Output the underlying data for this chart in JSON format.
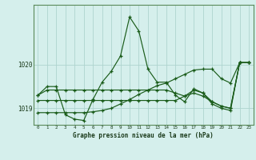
{
  "xlabel": "Graphe pression niveau de la mer (hPa)",
  "bg_color": "#d5efec",
  "grid_color": "#aed4cf",
  "line_color": "#1a5c1a",
  "xmin": -0.5,
  "xmax": 23.5,
  "ymin": 1018.62,
  "ymax": 1021.38,
  "yticks": [
    1019,
    1020
  ],
  "xticks": [
    0,
    1,
    2,
    3,
    4,
    5,
    6,
    7,
    8,
    9,
    10,
    11,
    12,
    13,
    14,
    15,
    16,
    17,
    18,
    19,
    20,
    21,
    22,
    23
  ],
  "s1": [
    1019.3,
    1019.5,
    1019.5,
    1018.85,
    1018.75,
    1018.72,
    1019.2,
    1019.6,
    1019.85,
    1020.2,
    1021.1,
    1020.78,
    1019.9,
    1019.6,
    1019.6,
    1019.3,
    1019.15,
    1019.45,
    1019.35,
    1019.1,
    1019.0,
    1018.95,
    1020.05,
    1020.05
  ],
  "s2": [
    1018.9,
    1018.9,
    1018.9,
    1018.9,
    1018.9,
    1018.9,
    1018.92,
    1018.95,
    1019.0,
    1019.1,
    1019.2,
    1019.32,
    1019.42,
    1019.52,
    1019.58,
    1019.68,
    1019.78,
    1019.88,
    1019.9,
    1019.9,
    1019.68,
    1019.58,
    1020.05,
    1020.05
  ],
  "s3": [
    1019.3,
    1019.42,
    1019.42,
    1019.42,
    1019.42,
    1019.42,
    1019.42,
    1019.42,
    1019.42,
    1019.42,
    1019.42,
    1019.42,
    1019.42,
    1019.42,
    1019.42,
    1019.35,
    1019.28,
    1019.42,
    1019.35,
    1019.15,
    1019.05,
    1019.0,
    1020.05,
    1020.05
  ],
  "s4": [
    1019.18,
    1019.18,
    1019.18,
    1019.18,
    1019.18,
    1019.18,
    1019.18,
    1019.18,
    1019.18,
    1019.18,
    1019.18,
    1019.18,
    1019.18,
    1019.18,
    1019.18,
    1019.18,
    1019.28,
    1019.35,
    1019.28,
    1019.15,
    1019.05,
    1019.0,
    1020.05,
    1020.05
  ]
}
